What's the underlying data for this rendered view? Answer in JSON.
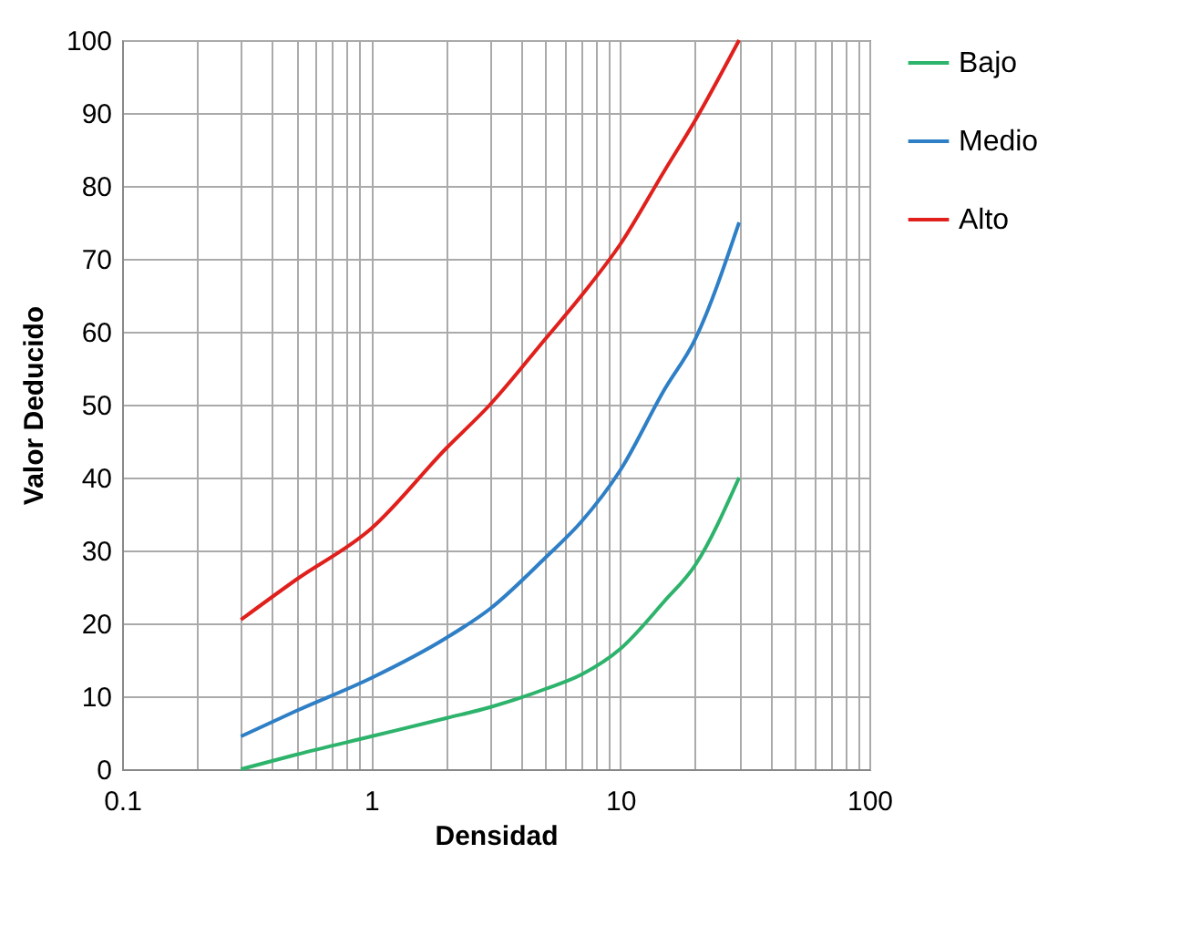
{
  "chart_data": {
    "type": "line",
    "xlabel": "Densidad",
    "ylabel": "Valor Deducido",
    "log": "x",
    "grid": true,
    "legend": "right",
    "line_style": "solid",
    "marker": "none",
    "x": [
      0.3,
      0.5,
      1,
      2,
      3,
      5,
      7,
      10,
      15,
      20,
      30
    ],
    "xlim": [
      0.1,
      100
    ],
    "xticks": [
      {
        "value": 0.1,
        "label": "0.1"
      },
      {
        "value": 0.2,
        "label": null
      },
      {
        "value": 0.3,
        "label": null
      },
      {
        "value": 0.4,
        "label": null
      },
      {
        "value": 0.5,
        "label": null
      },
      {
        "value": 0.6,
        "label": null
      },
      {
        "value": 0.7,
        "label": null
      },
      {
        "value": 0.8,
        "label": null
      },
      {
        "value": 0.9,
        "label": null
      },
      1,
      {
        "value": 2,
        "label": null
      },
      {
        "value": 3,
        "label": null
      },
      {
        "value": 4,
        "label": null
      },
      {
        "value": 5,
        "label": null
      },
      {
        "value": 6,
        "label": null
      },
      {
        "value": 7,
        "label": null
      },
      {
        "value": 8,
        "label": null
      },
      {
        "value": 9,
        "label": null
      },
      10,
      {
        "value": 20,
        "label": null
      },
      {
        "value": 30,
        "label": null
      },
      {
        "value": 40,
        "label": null
      },
      {
        "value": 50,
        "label": null
      },
      {
        "value": 60,
        "label": null
      },
      {
        "value": 70,
        "label": null
      },
      {
        "value": 80,
        "label": null
      },
      {
        "value": 90,
        "label": null
      },
      100
    ],
    "ylim": [
      0,
      100
    ],
    "yticks": [
      0,
      10,
      20,
      30,
      40,
      50,
      60,
      70,
      80,
      90,
      100
    ],
    "series": [
      {
        "name": "Bajo",
        "color": "#2db36b",
        "values": [
          0,
          2,
          4.5,
          7,
          8.5,
          11,
          13,
          16.5,
          23,
          28,
          40
        ]
      },
      {
        "name": "Medio",
        "color": "#2e7fc6",
        "values": [
          4.5,
          8,
          12.5,
          18,
          22,
          29,
          34,
          41,
          52,
          59,
          75
        ]
      },
      {
        "name": "Alto",
        "color": "#e0201c",
        "values": [
          20.5,
          26,
          33,
          44,
          50,
          59,
          65,
          72,
          82,
          89,
          100
        ]
      }
    ]
  }
}
